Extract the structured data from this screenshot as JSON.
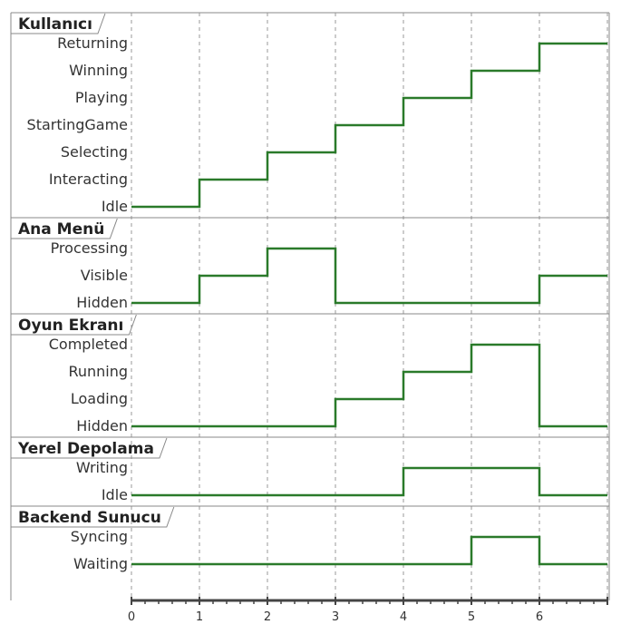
{
  "time_ticks": [
    "0",
    "1",
    "2",
    "3",
    "4",
    "5",
    "6"
  ],
  "line_color": "#2a7a2a",
  "lanes": [
    {
      "title": "Kullanıcı",
      "states": [
        "Returning",
        "Winning",
        "Playing",
        "StartingGame",
        "Selecting",
        "Interacting",
        "Idle"
      ],
      "timeline": [
        "Idle",
        "Interacting",
        "Selecting",
        "StartingGame",
        "Playing",
        "Winning",
        "Returning"
      ]
    },
    {
      "title": "Ana Menü",
      "states": [
        "Processing",
        "Visible",
        "Hidden"
      ],
      "timeline": [
        "Hidden",
        "Visible",
        "Processing",
        "Hidden",
        "Hidden",
        "Hidden",
        "Visible"
      ]
    },
    {
      "title": "Oyun Ekranı",
      "states": [
        "Completed",
        "Running",
        "Loading",
        "Hidden"
      ],
      "timeline": [
        "Hidden",
        "Hidden",
        "Hidden",
        "Loading",
        "Running",
        "Completed",
        "Hidden"
      ]
    },
    {
      "title": "Yerel Depolama",
      "states": [
        "Writing",
        "Idle"
      ],
      "timeline": [
        "Idle",
        "Idle",
        "Idle",
        "Idle",
        "Writing",
        "Writing",
        "Idle"
      ]
    },
    {
      "title": "Backend Sunucu",
      "states": [
        "Syncing",
        "Waiting"
      ],
      "timeline": [
        "Waiting",
        "Waiting",
        "Waiting",
        "Waiting",
        "Waiting",
        "Syncing",
        "Waiting"
      ]
    }
  ]
}
